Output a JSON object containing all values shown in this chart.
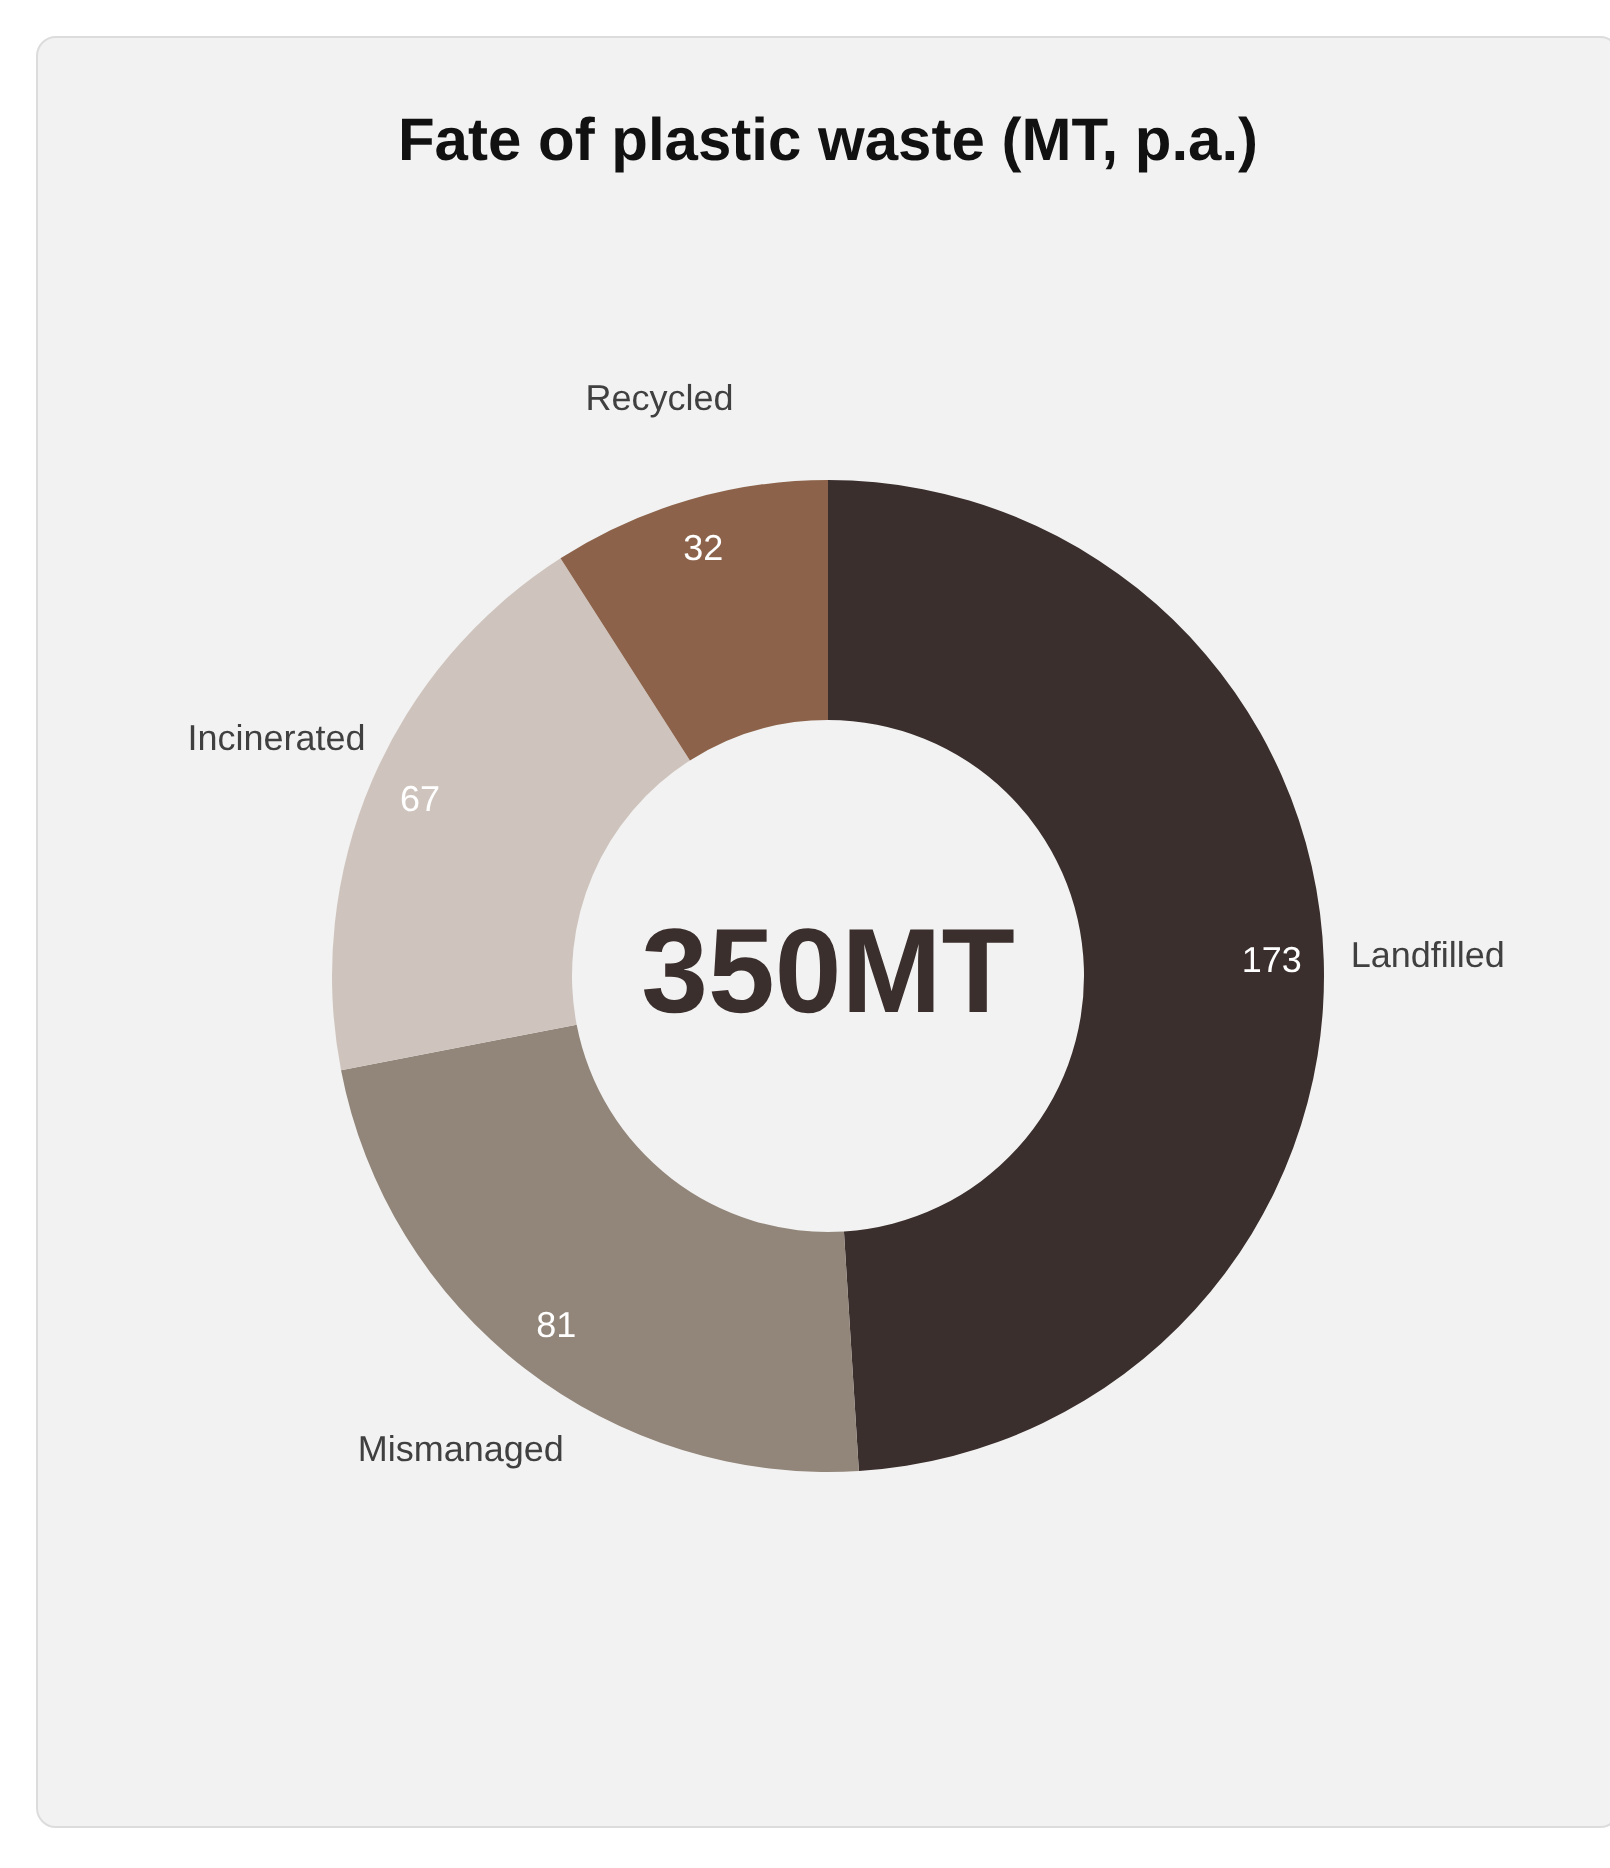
{
  "chart_data": {
    "type": "donut",
    "title": "Fate of plastic waste (MT, p.a.)",
    "categories": [
      "Landfilled",
      "Mismanaged",
      "Incinerated",
      "Recycled"
    ],
    "values": [
      173,
      81,
      67,
      32
    ],
    "colors": [
      "#3b2f2d",
      "#928579",
      "#cfc4bd",
      "#8c634a"
    ],
    "data_labels": true,
    "legend": false,
    "annotations": [
      "350MT"
    ]
  }
}
